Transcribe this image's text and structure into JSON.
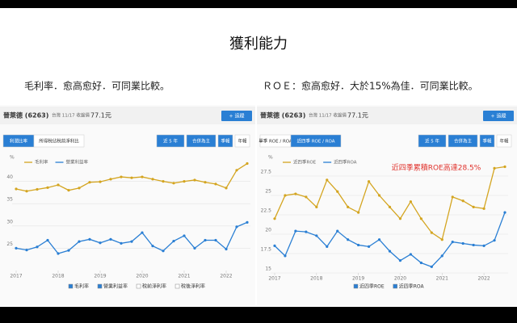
{
  "slide": {
    "title": "獲利能力",
    "left_caption": "毛利率．愈高愈好．可同業比較。",
    "right_caption": "ＲＯＥ：愈高愈好．大於15%為佳．可同業比較。"
  },
  "panels": [
    {
      "stock": "晉萊德 (6263)",
      "info": "台灣 11/17 收盤價",
      "price": "77.1元",
      "follow": "+ 追蹤",
      "tabs": [
        "利潤比率",
        "所得稅佔稅前淨利比"
      ],
      "controls": [
        "近 5 年",
        "合併為主",
        "季報",
        "年報"
      ]
    },
    {
      "stock": "晉萊德 (6263)",
      "info": "台灣 11/17 收盤價",
      "price": "77.1元",
      "follow": "+ 追蹤",
      "tabs": [
        "單季 ROE / ROA",
        "近四季 ROE / ROA"
      ],
      "controls": [
        "近 5 年",
        "合併為主",
        "季報",
        "年報"
      ]
    }
  ],
  "chart_data": [
    {
      "type": "line",
      "y_label": "%",
      "xlim": [
        2017,
        2022.5
      ],
      "xticks": [
        2017,
        2018,
        2019,
        2020,
        2021,
        2022
      ],
      "ylim": [
        20,
        45
      ],
      "yticks": [
        25,
        30,
        35,
        40
      ],
      "grid": true,
      "x": [
        2017,
        2017.25,
        2017.5,
        2017.75,
        2018,
        2018.25,
        2018.5,
        2018.75,
        2019,
        2019.25,
        2019.5,
        2019.75,
        2020,
        2020.25,
        2020.5,
        2020.75,
        2021,
        2021.25,
        2021.5,
        2021.75,
        2022,
        2022.25,
        2022.5
      ],
      "series": [
        {
          "name": "毛利率",
          "color": "#d4a520",
          "values": [
            38.3,
            37.8,
            38.2,
            38.6,
            39.2,
            38.0,
            38.5,
            39.8,
            39.9,
            40.5,
            41.0,
            40.8,
            41.0,
            40.5,
            40.0,
            39.6,
            40.0,
            40.3,
            39.8,
            39.4,
            38.5,
            42.5,
            44.0
          ]
        },
        {
          "name": "營業利益率",
          "color": "#2a7fd4",
          "values": [
            25.0,
            24.6,
            25.3,
            26.8,
            23.8,
            24.5,
            26.5,
            27.0,
            26.2,
            27.0,
            26.1,
            26.5,
            28.5,
            25.5,
            24.4,
            26.6,
            27.8,
            25.0,
            26.8,
            26.8,
            24.8,
            29.8,
            30.8
          ]
        }
      ],
      "unchecked_legend": [
        "稅前淨利率",
        "稅後淨利率"
      ]
    },
    {
      "type": "line",
      "y_label": "%",
      "annotation": "近四季累積ROE高達28.5%",
      "xlim": [
        2017,
        2022.5
      ],
      "xticks": [
        2017,
        2018,
        2019,
        2020,
        2021,
        2022
      ],
      "ylim": [
        15,
        29
      ],
      "yticks": [
        15,
        17.5,
        20,
        22.5,
        25,
        27.5
      ],
      "grid": true,
      "x": [
        2017,
        2017.25,
        2017.5,
        2017.75,
        2018,
        2018.25,
        2018.5,
        2018.75,
        2019,
        2019.25,
        2019.5,
        2019.75,
        2020,
        2020.25,
        2020.5,
        2020.75,
        2021,
        2021.25,
        2021.5,
        2021.75,
        2022,
        2022.25,
        2022.5
      ],
      "series": [
        {
          "name": "近四季ROE",
          "color": "#d4a520",
          "values": [
            22.0,
            25.0,
            25.2,
            24.8,
            23.5,
            27.0,
            25.5,
            23.5,
            22.8,
            26.8,
            25.0,
            23.5,
            22.0,
            24.2,
            22.0,
            20.2,
            19.3,
            24.8,
            24.3,
            23.5,
            23.3,
            28.5,
            28.7
          ]
        },
        {
          "name": "近四季ROA",
          "color": "#2a7fd4",
          "values": [
            18.5,
            17.2,
            20.4,
            20.3,
            19.8,
            18.4,
            20.4,
            19.3,
            18.6,
            18.4,
            19.3,
            17.8,
            16.6,
            17.4,
            16.3,
            15.8,
            17.2,
            19.0,
            18.8,
            18.6,
            18.5,
            19.2,
            22.8
          ]
        }
      ]
    }
  ]
}
